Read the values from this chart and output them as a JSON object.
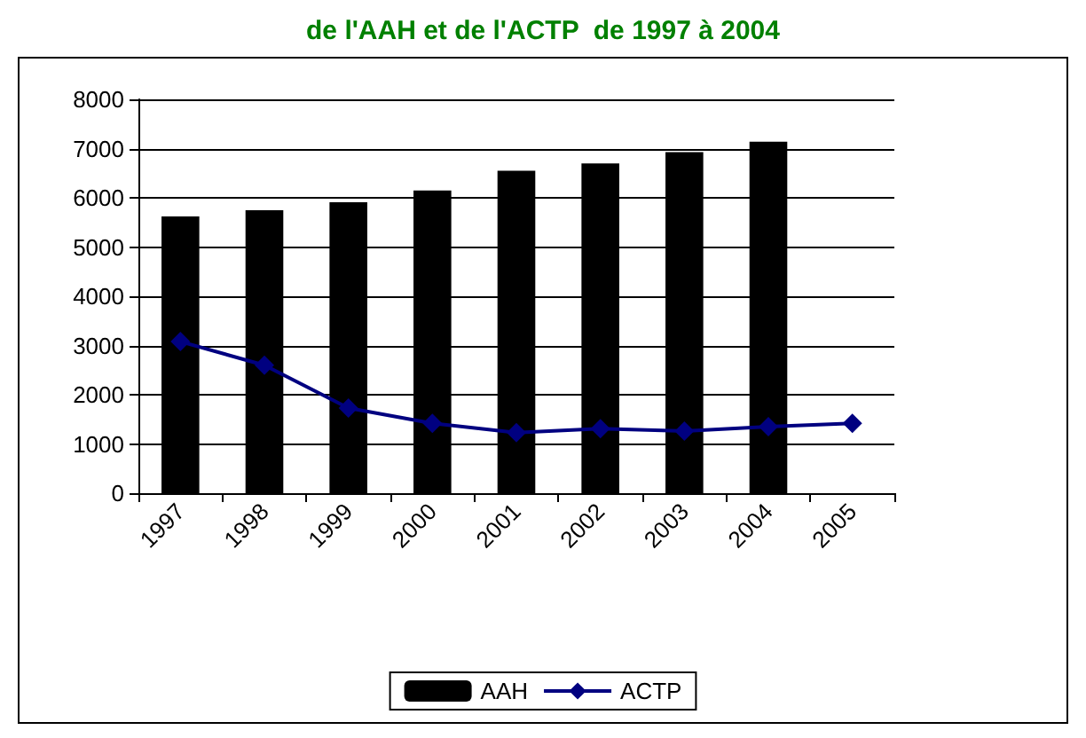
{
  "chart_data": {
    "type": "bar",
    "title": "de l'AAH et de l'ACTP  de 1997 à 2004",
    "categories": [
      "1997",
      "1998",
      "1999",
      "2000",
      "2001",
      "2002",
      "2003",
      "2004",
      "2005"
    ],
    "series": [
      {
        "name": "AAH",
        "color": "#000000",
        "values": [
          5620,
          5750,
          5910,
          6150,
          6550,
          6700,
          6930,
          7140,
          null
        ]
      },
      {
        "name": "ACTP",
        "type": "line",
        "color": "#000080",
        "marker": "diamond",
        "values": [
          3080,
          2600,
          1730,
          1420,
          1230,
          1310,
          1260,
          1350,
          1420
        ]
      }
    ],
    "ylim": [
      0,
      8000
    ],
    "yticks": [
      0,
      1000,
      2000,
      3000,
      4000,
      5000,
      6000,
      7000,
      8000
    ],
    "grid": "y",
    "legend": "bottom"
  }
}
